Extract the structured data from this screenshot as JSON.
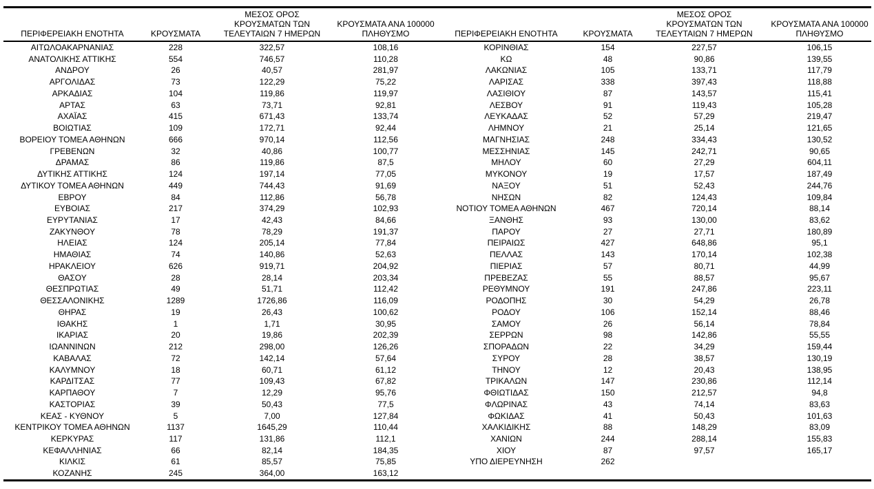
{
  "table": {
    "headers": {
      "region": "ΠΕΡΙΦΕΡΕΙΑΚΗ ΕΝΟΤΗΤΑ",
      "cases": "ΚΡΟΥΣΜΑΤΑ",
      "avg7_lines": [
        "ΜΕΣΟΣ ΟΡΟΣ",
        "ΚΡΟΥΣΜΑΤΩΝ ΤΩΝ",
        "ΤΕΛΕΥΤΑΙΩΝ 7 ΗΜΕΡΩΝ"
      ],
      "per100k_lines": [
        "ΚΡΟΥΣΜΑΤΑ ΑΝΑ 100000",
        "ΠΛΗΘΥΣΜΟ"
      ]
    },
    "left_rows": [
      {
        "region": "ΑΙΤΩΛΟΑΚΑΡΝΑΝΙΑΣ",
        "cases": "228",
        "avg7": "322,57",
        "per100k": "108,16"
      },
      {
        "region": "ΑΝΑΤΟΛΙΚΗΣ ΑΤΤΙΚΗΣ",
        "cases": "554",
        "avg7": "746,57",
        "per100k": "110,28"
      },
      {
        "region": "ΑΝΔΡΟΥ",
        "cases": "26",
        "avg7": "40,57",
        "per100k": "281,97"
      },
      {
        "region": "ΑΡΓΟΛΙΔΑΣ",
        "cases": "73",
        "avg7": "122,29",
        "per100k": "75,22"
      },
      {
        "region": "ΑΡΚΑΔΙΑΣ",
        "cases": "104",
        "avg7": "119,86",
        "per100k": "119,97"
      },
      {
        "region": "ΑΡΤΑΣ",
        "cases": "63",
        "avg7": "73,71",
        "per100k": "92,81"
      },
      {
        "region": "ΑΧΑΪΑΣ",
        "cases": "415",
        "avg7": "671,43",
        "per100k": "133,74"
      },
      {
        "region": "ΒΟΙΩΤΙΑΣ",
        "cases": "109",
        "avg7": "172,71",
        "per100k": "92,44"
      },
      {
        "region": "ΒΟΡΕΙΟΥ ΤΟΜΕΑ ΑΘΗΝΩΝ",
        "cases": "666",
        "avg7": "970,14",
        "per100k": "112,56"
      },
      {
        "region": "ΓΡΕΒΕΝΩΝ",
        "cases": "32",
        "avg7": "40,86",
        "per100k": "100,77"
      },
      {
        "region": "ΔΡΑΜΑΣ",
        "cases": "86",
        "avg7": "119,86",
        "per100k": "87,5"
      },
      {
        "region": "ΔΥΤΙΚΗΣ ΑΤΤΙΚΗΣ",
        "cases": "124",
        "avg7": "197,14",
        "per100k": "77,05"
      },
      {
        "region": "ΔΥΤΙΚΟΥ ΤΟΜΕΑ ΑΘΗΝΩΝ",
        "cases": "449",
        "avg7": "744,43",
        "per100k": "91,69"
      },
      {
        "region": "ΕΒΡΟΥ",
        "cases": "84",
        "avg7": "112,86",
        "per100k": "56,78"
      },
      {
        "region": "ΕΥΒΟΙΑΣ",
        "cases": "217",
        "avg7": "374,29",
        "per100k": "102,93"
      },
      {
        "region": "ΕΥΡΥΤΑΝΙΑΣ",
        "cases": "17",
        "avg7": "42,43",
        "per100k": "84,66"
      },
      {
        "region": "ΖΑΚΥΝΘΟΥ",
        "cases": "78",
        "avg7": "78,29",
        "per100k": "191,37"
      },
      {
        "region": "ΗΛΕΙΑΣ",
        "cases": "124",
        "avg7": "205,14",
        "per100k": "77,84"
      },
      {
        "region": "ΗΜΑΘΙΑΣ",
        "cases": "74",
        "avg7": "140,86",
        "per100k": "52,63"
      },
      {
        "region": "ΗΡΑΚΛΕΙΟΥ",
        "cases": "626",
        "avg7": "919,71",
        "per100k": "204,92"
      },
      {
        "region": "ΘΑΣΟΥ",
        "cases": "28",
        "avg7": "28,14",
        "per100k": "203,34"
      },
      {
        "region": "ΘΕΣΠΡΩΤΙΑΣ",
        "cases": "49",
        "avg7": "51,71",
        "per100k": "112,42"
      },
      {
        "region": "ΘΕΣΣΑΛΟΝΙΚΗΣ",
        "cases": "1289",
        "avg7": "1726,86",
        "per100k": "116,09"
      },
      {
        "region": "ΘΗΡΑΣ",
        "cases": "19",
        "avg7": "26,43",
        "per100k": "100,62"
      },
      {
        "region": "ΙΘΑΚΗΣ",
        "cases": "1",
        "avg7": "1,71",
        "per100k": "30,95"
      },
      {
        "region": "ΙΚΑΡΙΑΣ",
        "cases": "20",
        "avg7": "19,86",
        "per100k": "202,39"
      },
      {
        "region": "ΙΩΑΝΝΙΝΩΝ",
        "cases": "212",
        "avg7": "298,00",
        "per100k": "126,26"
      },
      {
        "region": "ΚΑΒΑΛΑΣ",
        "cases": "72",
        "avg7": "142,14",
        "per100k": "57,64"
      },
      {
        "region": "ΚΑΛΥΜΝΟΥ",
        "cases": "18",
        "avg7": "60,71",
        "per100k": "61,12"
      },
      {
        "region": "ΚΑΡΔΙΤΣΑΣ",
        "cases": "77",
        "avg7": "109,43",
        "per100k": "67,82"
      },
      {
        "region": "ΚΑΡΠΑΘΟΥ",
        "cases": "7",
        "avg7": "12,29",
        "per100k": "95,76"
      },
      {
        "region": "ΚΑΣΤΟΡΙΑΣ",
        "cases": "39",
        "avg7": "50,43",
        "per100k": "77,5"
      },
      {
        "region": "ΚΕΑΣ - ΚΥΘΝΟΥ",
        "cases": "5",
        "avg7": "7,00",
        "per100k": "127,84"
      },
      {
        "region": "ΚΕΝΤΡΙΚΟΥ ΤΟΜΕΑ ΑΘΗΝΩΝ",
        "cases": "1137",
        "avg7": "1645,29",
        "per100k": "110,44"
      },
      {
        "region": "ΚΕΡΚΥΡΑΣ",
        "cases": "117",
        "avg7": "131,86",
        "per100k": "112,1"
      },
      {
        "region": "ΚΕΦΑΛΛΗΝΙΑΣ",
        "cases": "66",
        "avg7": "82,14",
        "per100k": "184,35"
      },
      {
        "region": "ΚΙΛΚΙΣ",
        "cases": "61",
        "avg7": "85,57",
        "per100k": "75,85"
      },
      {
        "region": "ΚΟΖΑΝΗΣ",
        "cases": "245",
        "avg7": "364,00",
        "per100k": "163,12"
      }
    ],
    "right_rows": [
      {
        "region": "ΚΟΡΙΝΘΙΑΣ",
        "cases": "154",
        "avg7": "227,57",
        "per100k": "106,15"
      },
      {
        "region": "ΚΩ",
        "cases": "48",
        "avg7": "90,86",
        "per100k": "139,55"
      },
      {
        "region": "ΛΑΚΩΝΙΑΣ",
        "cases": "105",
        "avg7": "133,71",
        "per100k": "117,79"
      },
      {
        "region": "ΛΑΡΙΣΑΣ",
        "cases": "338",
        "avg7": "397,43",
        "per100k": "118,88"
      },
      {
        "region": "ΛΑΣΙΘΙΟΥ",
        "cases": "87",
        "avg7": "143,57",
        "per100k": "115,41"
      },
      {
        "region": "ΛΕΣΒΟΥ",
        "cases": "91",
        "avg7": "119,43",
        "per100k": "105,28"
      },
      {
        "region": "ΛΕΥΚΑΔΑΣ",
        "cases": "52",
        "avg7": "57,29",
        "per100k": "219,47"
      },
      {
        "region": "ΛΗΜΝΟΥ",
        "cases": "21",
        "avg7": "25,14",
        "per100k": "121,65"
      },
      {
        "region": "ΜΑΓΝΗΣΙΑΣ",
        "cases": "248",
        "avg7": "334,43",
        "per100k": "130,52"
      },
      {
        "region": "ΜΕΣΣΗΝΙΑΣ",
        "cases": "145",
        "avg7": "242,71",
        "per100k": "90,65"
      },
      {
        "region": "ΜΗΛΟΥ",
        "cases": "60",
        "avg7": "27,29",
        "per100k": "604,11"
      },
      {
        "region": "ΜΥΚΟΝΟΥ",
        "cases": "19",
        "avg7": "17,57",
        "per100k": "187,49"
      },
      {
        "region": "ΝΑΞΟΥ",
        "cases": "51",
        "avg7": "52,43",
        "per100k": "244,76"
      },
      {
        "region": "ΝΗΣΩΝ",
        "cases": "82",
        "avg7": "124,43",
        "per100k": "109,84"
      },
      {
        "region": "ΝΟΤΙΟΥ ΤΟΜΕΑ ΑΘΗΝΩΝ",
        "cases": "467",
        "avg7": "720,14",
        "per100k": "88,14"
      },
      {
        "region": "ΞΑΝΘΗΣ",
        "cases": "93",
        "avg7": "130,00",
        "per100k": "83,62"
      },
      {
        "region": "ΠΑΡΟΥ",
        "cases": "27",
        "avg7": "27,71",
        "per100k": "180,89"
      },
      {
        "region": "ΠΕΙΡΑΙΩΣ",
        "cases": "427",
        "avg7": "648,86",
        "per100k": "95,1"
      },
      {
        "region": "ΠΕΛΛΑΣ",
        "cases": "143",
        "avg7": "170,14",
        "per100k": "102,38"
      },
      {
        "region": "ΠΙΕΡΙΑΣ",
        "cases": "57",
        "avg7": "80,71",
        "per100k": "44,99"
      },
      {
        "region": "ΠΡΕΒΕΖΑΣ",
        "cases": "55",
        "avg7": "88,57",
        "per100k": "95,67"
      },
      {
        "region": "ΡΕΘΥΜΝΟΥ",
        "cases": "191",
        "avg7": "247,86",
        "per100k": "223,11"
      },
      {
        "region": "ΡΟΔΟΠΗΣ",
        "cases": "30",
        "avg7": "54,29",
        "per100k": "26,78"
      },
      {
        "region": "ΡΟΔΟΥ",
        "cases": "106",
        "avg7": "152,14",
        "per100k": "88,46"
      },
      {
        "region": "ΣΑΜΟΥ",
        "cases": "26",
        "avg7": "56,14",
        "per100k": "78,84"
      },
      {
        "region": "ΣΕΡΡΩΝ",
        "cases": "98",
        "avg7": "142,86",
        "per100k": "55,55"
      },
      {
        "region": "ΣΠΟΡΑΔΩΝ",
        "cases": "22",
        "avg7": "34,29",
        "per100k": "159,44"
      },
      {
        "region": "ΣΥΡΟΥ",
        "cases": "28",
        "avg7": "38,57",
        "per100k": "130,19"
      },
      {
        "region": "ΤΗΝΟΥ",
        "cases": "12",
        "avg7": "20,43",
        "per100k": "138,95"
      },
      {
        "region": "ΤΡΙΚΑΛΩΝ",
        "cases": "147",
        "avg7": "230,86",
        "per100k": "112,14"
      },
      {
        "region": "ΦΘΙΩΤΙΔΑΣ",
        "cases": "150",
        "avg7": "212,57",
        "per100k": "94,8"
      },
      {
        "region": "ΦΛΩΡΙΝΑΣ",
        "cases": "43",
        "avg7": "74,14",
        "per100k": "83,63"
      },
      {
        "region": "ΦΩΚΙΔΑΣ",
        "cases": "41",
        "avg7": "50,43",
        "per100k": "101,63"
      },
      {
        "region": "ΧΑΛΚΙΔΙΚΗΣ",
        "cases": "88",
        "avg7": "148,29",
        "per100k": "83,09"
      },
      {
        "region": "ΧΑΝΙΩΝ",
        "cases": "244",
        "avg7": "288,14",
        "per100k": "155,83"
      },
      {
        "region": "ΧΙΟΥ",
        "cases": "87",
        "avg7": "97,57",
        "per100k": "165,17"
      },
      {
        "region": "ΥΠΟ ΔΙΕΡΕΥΝΗΣΗ",
        "cases": "262",
        "avg7": "",
        "per100k": ""
      }
    ]
  }
}
